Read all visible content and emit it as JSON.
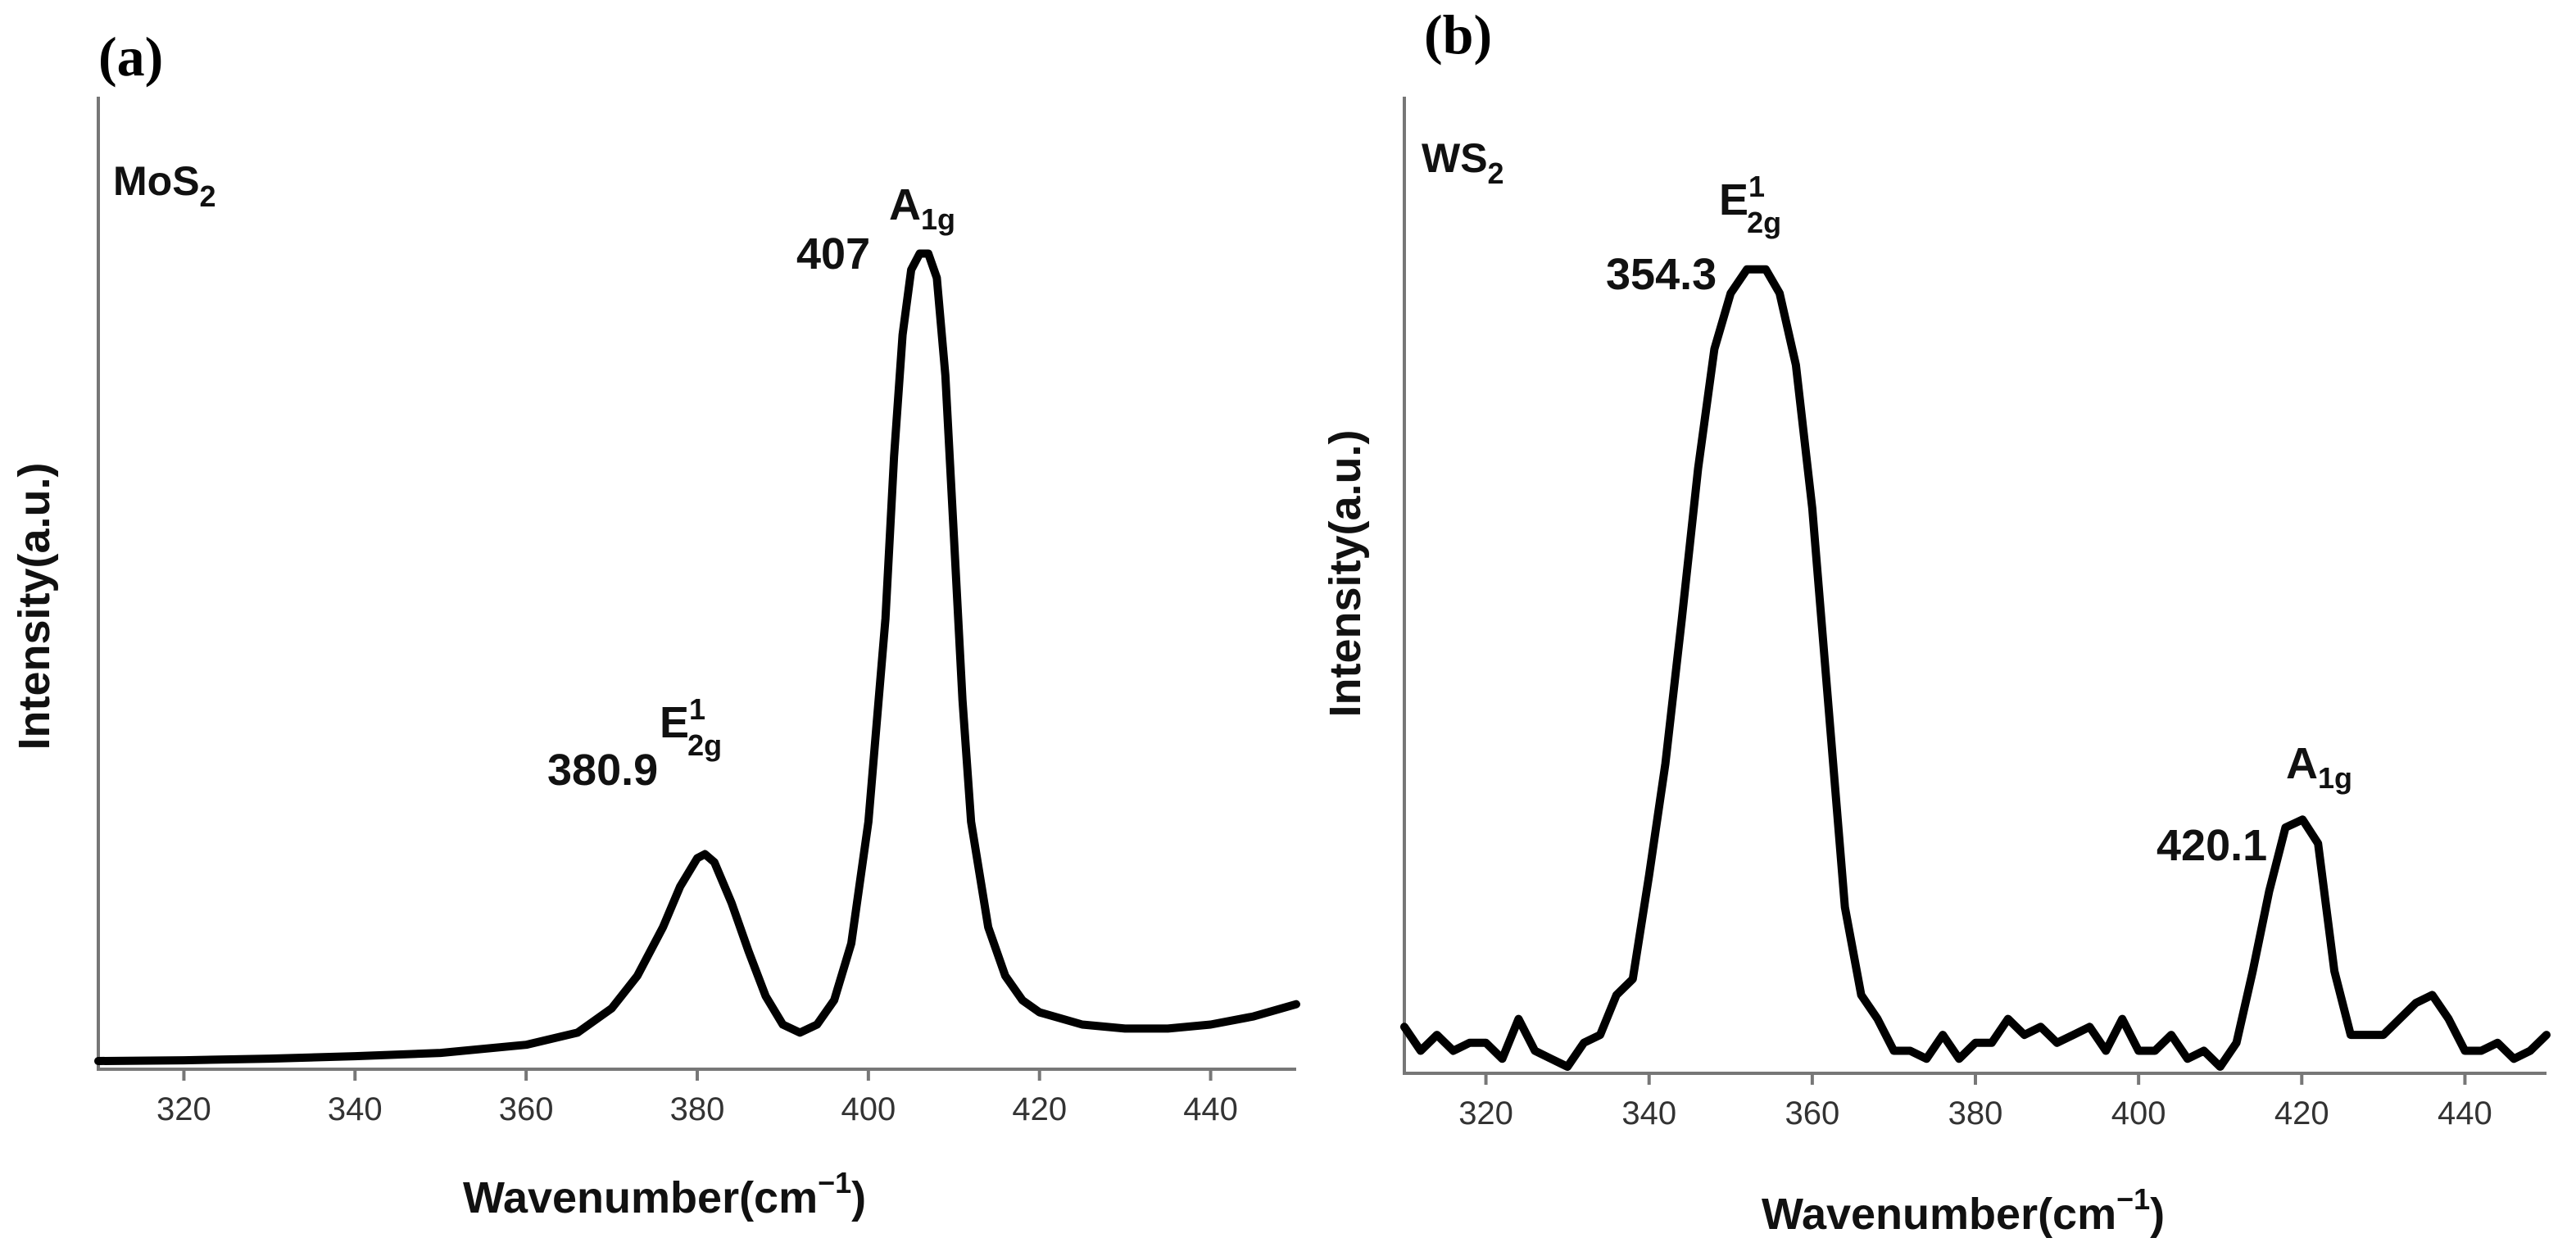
{
  "chart_data": [
    {
      "type": "line",
      "panel_label": "(a)",
      "sample_label": {
        "main": "MoS",
        "sub": "2"
      },
      "xlabel": {
        "main": "Wavenumber(cm",
        "sup": "−1",
        "close": ")"
      },
      "ylabel": "Intensity(a.u.)",
      "xlim": [
        310,
        450
      ],
      "ylim": [
        0,
        1.05
      ],
      "xticks": [
        320,
        340,
        360,
        380,
        400,
        420,
        440
      ],
      "x": [
        310,
        320,
        330,
        340,
        350,
        360,
        366,
        370,
        373,
        376,
        378,
        380,
        380.9,
        382,
        384,
        386,
        388,
        390,
        392,
        394,
        396,
        398,
        400,
        402,
        403,
        404,
        405,
        406,
        407,
        408,
        409,
        410,
        411,
        412,
        414,
        416,
        418,
        420,
        425,
        430,
        435,
        440,
        445,
        450
      ],
      "y": [
        0.005,
        0.006,
        0.008,
        0.011,
        0.015,
        0.025,
        0.04,
        0.07,
        0.11,
        0.17,
        0.22,
        0.255,
        0.26,
        0.25,
        0.2,
        0.14,
        0.085,
        0.05,
        0.04,
        0.05,
        0.08,
        0.15,
        0.3,
        0.55,
        0.75,
        0.9,
        0.98,
        1.0,
        1.0,
        0.97,
        0.85,
        0.65,
        0.45,
        0.3,
        0.17,
        0.11,
        0.08,
        0.065,
        0.05,
        0.045,
        0.045,
        0.05,
        0.06,
        0.075
      ],
      "annotations": [
        {
          "value": "380.9",
          "mode": {
            "main": "E",
            "sup": "1",
            "sub": "2g"
          }
        },
        {
          "value": "407",
          "mode": {
            "main": "A",
            "sub": "1g"
          }
        }
      ]
    },
    {
      "type": "line",
      "panel_label": "(b)",
      "sample_label": {
        "main": "WS",
        "sub": "2"
      },
      "xlabel": {
        "main": "Wavenumber(cm",
        "sup": "−1",
        "close": ")"
      },
      "ylabel": "Intensity(a.u.)",
      "xlim": [
        310,
        450
      ],
      "ylim": [
        0,
        1.05
      ],
      "xticks": [
        320,
        340,
        360,
        380,
        400,
        420,
        440
      ],
      "x": [
        310,
        312,
        314,
        316,
        318,
        320,
        322,
        324,
        326,
        328,
        330,
        332,
        334,
        336,
        338,
        340,
        342,
        344,
        346,
        348,
        350,
        352,
        354.3,
        356,
        358,
        360,
        362,
        364,
        366,
        368,
        370,
        372,
        374,
        376,
        378,
        380,
        382,
        384,
        386,
        388,
        390,
        392,
        394,
        396,
        398,
        400,
        402,
        404,
        406,
        408,
        410,
        412,
        414,
        416,
        418,
        420.1,
        422,
        424,
        426,
        428,
        430,
        432,
        434,
        436,
        438,
        440,
        442,
        444,
        446,
        448,
        450
      ],
      "y": [
        0.05,
        0.02,
        0.04,
        0.02,
        0.03,
        0.03,
        0.01,
        0.06,
        0.02,
        0.01,
        0.0,
        0.03,
        0.04,
        0.09,
        0.11,
        0.24,
        0.38,
        0.56,
        0.75,
        0.9,
        0.97,
        1.0,
        1.0,
        0.97,
        0.88,
        0.7,
        0.45,
        0.2,
        0.09,
        0.06,
        0.02,
        0.02,
        0.01,
        0.04,
        0.01,
        0.03,
        0.03,
        0.06,
        0.04,
        0.05,
        0.03,
        0.04,
        0.05,
        0.02,
        0.06,
        0.02,
        0.02,
        0.04,
        0.01,
        0.02,
        0.0,
        0.03,
        0.12,
        0.22,
        0.3,
        0.31,
        0.28,
        0.12,
        0.04,
        0.04,
        0.04,
        0.06,
        0.08,
        0.09,
        0.06,
        0.02,
        0.02,
        0.03,
        0.01,
        0.02,
        0.04
      ],
      "annotations": [
        {
          "value": "354.3",
          "mode": {
            "main": "E",
            "sup": "1",
            "sub": "2g"
          }
        },
        {
          "value": "420.1",
          "mode": {
            "main": "A",
            "sub": "1g"
          }
        }
      ]
    }
  ]
}
